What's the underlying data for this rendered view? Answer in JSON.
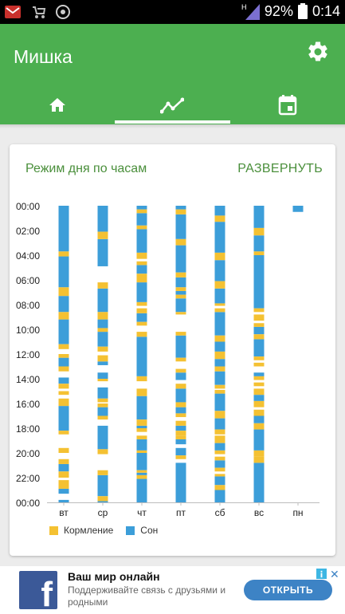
{
  "statusbar": {
    "battery": "92%",
    "time": "0:14",
    "network_badge": "H",
    "icons": [
      "gmail-icon",
      "stroller-icon",
      "chrome-icon",
      "signal-icon",
      "battery-icon"
    ]
  },
  "app": {
    "title": "Мишка",
    "tabs": [
      {
        "name": "home",
        "icon": "home-icon"
      },
      {
        "name": "stats",
        "icon": "trending-icon"
      },
      {
        "name": "calendar",
        "icon": "calendar-icon"
      }
    ],
    "active_tab": 1
  },
  "colors": {
    "primary": "#4caf50",
    "feeding": "#f4c132",
    "sleep": "#3c9ed9",
    "card_title": "#4a8f3b",
    "ad_button": "#3d83c5"
  },
  "card": {
    "title": "Режим дня по часам",
    "expand": "РАЗВЕРНУТЬ"
  },
  "legend": {
    "feeding": "Кормление",
    "sleep": "Сон"
  },
  "chart_data": {
    "type": "bar",
    "orientation": "vertical-timeline",
    "categories": [
      "вт",
      "ср",
      "чт",
      "пт",
      "сб",
      "вс",
      "пн"
    ],
    "y_tick_labels": [
      "00:00",
      "02:00",
      "04:00",
      "06:00",
      "08:00",
      "10:00",
      "12:00",
      "14:00",
      "16:00",
      "18:00",
      "20:00",
      "22:00",
      "00:00"
    ],
    "y_axis_unit": "hour",
    "ylim": [
      0,
      24
    ],
    "series": [
      {
        "name": "Сон",
        "segments": [
          [
            [
              0,
              3.7
            ],
            [
              4.1,
              6.6
            ],
            [
              7.3,
              8.6
            ],
            [
              9.2,
              11.2
            ],
            [
              12.3,
              13.0
            ],
            [
              13.9,
              14.4
            ],
            [
              16.2,
              18.2
            ],
            [
              20.9,
              21.5
            ],
            [
              22.9,
              23.3
            ],
            [
              23.8,
              24.0
            ]
          ],
          [
            [
              0,
              2.1
            ],
            [
              2.7,
              4.9
            ],
            [
              6.7,
              8.6
            ],
            [
              9.2,
              9.9
            ],
            [
              10.2,
              11.4
            ],
            [
              12.6,
              12.9
            ],
            [
              13.5,
              14.0
            ],
            [
              14.7,
              15.6
            ],
            [
              16.3,
              17.0
            ],
            [
              17.8,
              19.7
            ],
            [
              21.8,
              23.5
            ],
            [
              23.9,
              24.0
            ]
          ],
          [
            [
              0,
              0.3
            ],
            [
              0.6,
              1.6
            ],
            [
              1.9,
              3.8
            ],
            [
              4.8,
              5.5
            ],
            [
              6.2,
              7.8
            ],
            [
              8.7,
              9.4
            ],
            [
              10.6,
              13.8
            ],
            [
              15.4,
              17.3
            ],
            [
              17.8,
              18.0
            ],
            [
              18.9,
              19.8
            ],
            [
              20.0,
              21.4
            ],
            [
              21.6,
              21.8
            ],
            [
              22.1,
              24.0
            ]
          ],
          [
            [
              0,
              0.3
            ],
            [
              0.7,
              2.7
            ],
            [
              3.2,
              5.4
            ],
            [
              5.8,
              6.6
            ],
            [
              6.9,
              7.2
            ],
            [
              7.5,
              8.6
            ],
            [
              10.5,
              12.3
            ],
            [
              13.5,
              14.1
            ],
            [
              14.8,
              15.9
            ],
            [
              16.3,
              16.8
            ],
            [
              17.8,
              18.2
            ],
            [
              18.9,
              19.3
            ],
            [
              19.6,
              20.2
            ],
            [
              20.8,
              24.0
            ]
          ],
          [
            [
              0,
              0.8
            ],
            [
              1.3,
              3.8
            ],
            [
              4.4,
              6.1
            ],
            [
              6.7,
              7.9
            ],
            [
              8.6,
              10.5
            ],
            [
              11.0,
              11.8
            ],
            [
              12.4,
              13.0
            ],
            [
              13.4,
              14.5
            ],
            [
              15.2,
              16.6
            ],
            [
              17.2,
              18.1
            ],
            [
              19.2,
              19.8
            ],
            [
              20.6,
              21.2
            ],
            [
              21.9,
              22.6
            ],
            [
              23.0,
              24.0
            ]
          ],
          [
            [
              0,
              1.8
            ],
            [
              2.4,
              3.7
            ],
            [
              4.0,
              8.3
            ],
            [
              9.8,
              10.4
            ],
            [
              10.8,
              12.2
            ],
            [
              13.5,
              13.8
            ],
            [
              15.3,
              15.8
            ],
            [
              17.0,
              17.6
            ],
            [
              18.1,
              19.8
            ],
            [
              20.8,
              24.0
            ]
          ],
          [
            [
              0,
              0.5
            ]
          ]
        ]
      },
      {
        "name": "Кормление",
        "segments": [
          [
            [
              3.7,
              4.1
            ],
            [
              6.6,
              7.3
            ],
            [
              8.6,
              9.2
            ],
            [
              11.2,
              11.6
            ],
            [
              12.0,
              12.3
            ],
            [
              13.0,
              13.4
            ],
            [
              14.4,
              14.8
            ],
            [
              15.0,
              15.3
            ],
            [
              15.6,
              16.2
            ],
            [
              18.2,
              18.5
            ],
            [
              19.6,
              20.0
            ],
            [
              20.5,
              20.9
            ],
            [
              21.5,
              22.0
            ],
            [
              22.2,
              22.9
            ]
          ],
          [
            [
              2.1,
              2.7
            ],
            [
              6.2,
              6.7
            ],
            [
              8.6,
              9.2
            ],
            [
              9.9,
              10.2
            ],
            [
              11.4,
              11.8
            ],
            [
              12.1,
              12.6
            ],
            [
              14.0,
              14.2
            ],
            [
              15.6,
              15.9
            ],
            [
              16.0,
              16.3
            ],
            [
              17.0,
              17.3
            ],
            [
              19.7,
              20.1
            ],
            [
              21.4,
              21.8
            ],
            [
              23.5,
              23.9
            ]
          ],
          [
            [
              0.3,
              0.6
            ],
            [
              1.6,
              1.9
            ],
            [
              3.8,
              4.3
            ],
            [
              4.5,
              4.8
            ],
            [
              5.5,
              6.2
            ],
            [
              7.8,
              8.1
            ],
            [
              8.3,
              8.7
            ],
            [
              9.4,
              9.7
            ],
            [
              10.2,
              10.6
            ],
            [
              13.8,
              14.2
            ],
            [
              14.8,
              15.4
            ],
            [
              17.3,
              17.8
            ],
            [
              18.0,
              18.3
            ],
            [
              18.6,
              18.9
            ],
            [
              19.8,
              20.0
            ],
            [
              21.4,
              21.6
            ],
            [
              21.8,
              22.1
            ]
          ],
          [
            [
              0.3,
              0.7
            ],
            [
              2.7,
              3.2
            ],
            [
              5.4,
              5.8
            ],
            [
              6.6,
              6.9
            ],
            [
              7.2,
              7.5
            ],
            [
              8.6,
              8.8
            ],
            [
              10.2,
              10.5
            ],
            [
              12.3,
              12.6
            ],
            [
              13.2,
              13.5
            ],
            [
              14.4,
              14.8
            ],
            [
              15.9,
              16.3
            ],
            [
              16.8,
              17.1
            ],
            [
              17.4,
              17.8
            ],
            [
              18.2,
              18.6
            ],
            [
              18.6,
              18.9
            ],
            [
              20.2,
              20.5
            ]
          ],
          [
            [
              0.8,
              1.3
            ],
            [
              3.8,
              4.4
            ],
            [
              6.1,
              6.7
            ],
            [
              7.9,
              8.1
            ],
            [
              8.3,
              8.6
            ],
            [
              10.5,
              11.0
            ],
            [
              11.8,
              12.4
            ],
            [
              13.0,
              13.4
            ],
            [
              14.5,
              14.8
            ],
            [
              14.9,
              15.2
            ],
            [
              16.6,
              17.2
            ],
            [
              18.1,
              18.5
            ],
            [
              18.6,
              19.2
            ],
            [
              19.8,
              20.1
            ],
            [
              20.3,
              20.6
            ],
            [
              21.2,
              21.5
            ],
            [
              21.7,
              21.9
            ],
            [
              22.6,
              23.0
            ]
          ],
          [
            [
              1.8,
              2.4
            ],
            [
              3.7,
              4.0
            ],
            [
              8.3,
              8.6
            ],
            [
              8.8,
              9.3
            ],
            [
              9.5,
              9.8
            ],
            [
              10.4,
              10.8
            ],
            [
              12.2,
              12.5
            ],
            [
              12.7,
              13.0
            ],
            [
              13.8,
              14.1
            ],
            [
              14.3,
              14.6
            ],
            [
              14.8,
              15.3
            ],
            [
              15.8,
              16.3
            ],
            [
              16.5,
              17.0
            ],
            [
              17.6,
              18.1
            ],
            [
              19.8,
              20.3
            ],
            [
              20.3,
              20.8
            ]
          ],
          []
        ]
      }
    ],
    "title": "Режим дня по часам",
    "legend_position": "bottom-left",
    "grid": false
  },
  "ad": {
    "title": "Ваш мир онлайн",
    "description": "Поддерживайте связь с друзьями и родными",
    "button": "ОТКРЫТЬ",
    "logo_letter": "f",
    "close": "✕"
  }
}
